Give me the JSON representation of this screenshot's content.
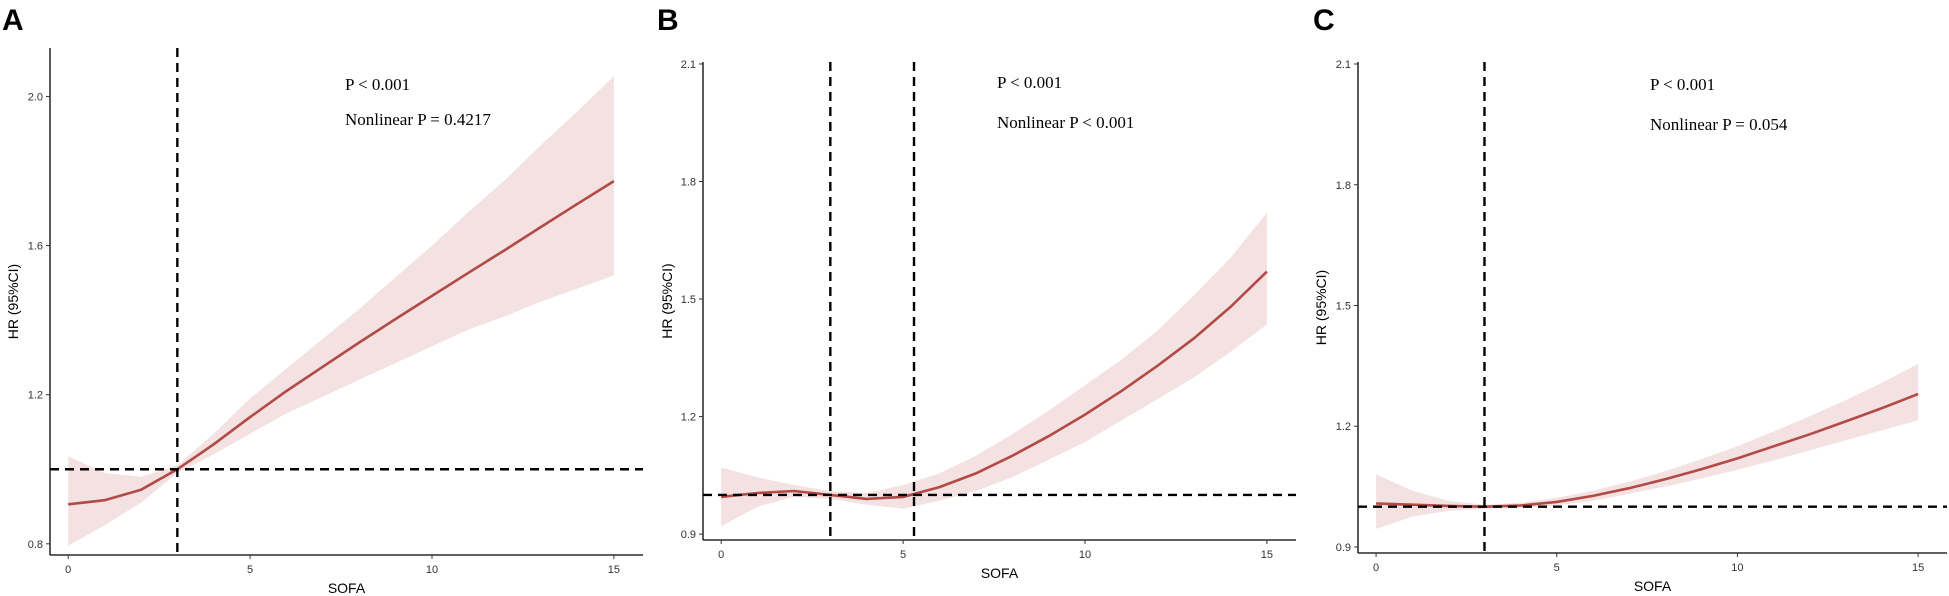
{
  "chart_data": [
    {
      "panel": "A",
      "type": "line",
      "xlabel": "SOFA",
      "ylabel": "HR (95%CI)",
      "xlim": [
        -0.5,
        15.8
      ],
      "ylim": [
        0.77,
        2.13
      ],
      "xticks": [
        0,
        5,
        10,
        15
      ],
      "yticks": [
        0.8,
        1.2,
        1.6,
        2.0
      ],
      "ytick_labels": [
        "0.8",
        "1.2",
        "1.6",
        "2.0"
      ],
      "annotations": [
        "P < 0.001",
        "Nonlinear P = 0.4217"
      ],
      "ref_vlines": [
        3
      ],
      "ref_hline": 1.0,
      "colors": {
        "line": "#b24a46",
        "band": "#f4e1e1"
      },
      "x": [
        0,
        1,
        2,
        3,
        4,
        5,
        6,
        7,
        8,
        9,
        10,
        11,
        12,
        13,
        14,
        15
      ],
      "y": [
        0.906,
        0.917,
        0.945,
        1.0,
        1.067,
        1.14,
        1.21,
        1.275,
        1.34,
        1.403,
        1.465,
        1.527,
        1.588,
        1.65,
        1.712,
        1.773
      ],
      "lower": [
        0.795,
        0.85,
        0.91,
        0.99,
        1.04,
        1.095,
        1.15,
        1.195,
        1.24,
        1.285,
        1.33,
        1.375,
        1.41,
        1.45,
        1.485,
        1.52
      ],
      "upper": [
        1.035,
        0.99,
        0.98,
        1.01,
        1.095,
        1.19,
        1.27,
        1.35,
        1.43,
        1.515,
        1.6,
        1.69,
        1.775,
        1.87,
        1.96,
        2.055
      ]
    },
    {
      "panel": "B",
      "type": "line",
      "xlabel": "SOFA",
      "ylabel": "HR (95%CI)",
      "xlim": [
        -0.5,
        15.8
      ],
      "ylim": [
        0.885,
        2.105
      ],
      "xticks": [
        0,
        5,
        10,
        15
      ],
      "yticks": [
        0.9,
        1.2,
        1.5,
        1.8,
        2.1
      ],
      "ytick_labels": [
        "0.9",
        "1.2",
        "1.5",
        "1.8",
        "2.1"
      ],
      "annotations": [
        "P < 0.001",
        "Nonlinear P < 0.001"
      ],
      "ref_vlines": [
        3,
        5.3
      ],
      "ref_hline": 1.0,
      "colors": {
        "line": "#b24a46",
        "band": "#f4e1e1"
      },
      "x": [
        0,
        1,
        2,
        3,
        4,
        5,
        6,
        7,
        8,
        9,
        10,
        11,
        12,
        13,
        14,
        15
      ],
      "y": [
        0.995,
        1.005,
        1.01,
        1.0,
        0.99,
        0.995,
        1.02,
        1.055,
        1.1,
        1.15,
        1.205,
        1.265,
        1.33,
        1.4,
        1.48,
        1.57
      ],
      "lower": [
        0.92,
        0.97,
        0.995,
        0.99,
        0.975,
        0.965,
        0.985,
        1.01,
        1.045,
        1.09,
        1.135,
        1.19,
        1.245,
        1.3,
        1.365,
        1.435
      ],
      "upper": [
        1.07,
        1.045,
        1.025,
        1.01,
        1.005,
        1.025,
        1.055,
        1.1,
        1.155,
        1.215,
        1.28,
        1.345,
        1.42,
        1.51,
        1.605,
        1.72
      ]
    },
    {
      "panel": "C",
      "type": "line",
      "xlabel": "SOFA",
      "ylabel": "HR (95%CI)",
      "xlim": [
        -0.5,
        15.8
      ],
      "ylim": [
        0.885,
        2.105
      ],
      "xticks": [
        0,
        5,
        10,
        15
      ],
      "yticks": [
        0.9,
        1.2,
        1.5,
        1.8,
        2.1
      ],
      "ytick_labels": [
        "0.9",
        "1.2",
        "1.5",
        "1.8",
        "2.1"
      ],
      "annotations": [
        "P < 0.001",
        "Nonlinear P = 0.054"
      ],
      "ref_vlines": [
        3
      ],
      "ref_hline": 1.0,
      "colors": {
        "line": "#b24a46",
        "band": "#f4e1e1"
      },
      "x": [
        0,
        1,
        2,
        3,
        4,
        5,
        6,
        7,
        8,
        9,
        10,
        11,
        12,
        13,
        14,
        15
      ],
      "y": [
        1.008,
        1.005,
        1.002,
        1.0,
        1.003,
        1.012,
        1.027,
        1.046,
        1.068,
        1.093,
        1.12,
        1.15,
        1.18,
        1.212,
        1.245,
        1.28
      ],
      "lower": [
        0.945,
        0.975,
        0.99,
        0.995,
        0.997,
        1.003,
        1.015,
        1.032,
        1.05,
        1.07,
        1.092,
        1.115,
        1.14,
        1.165,
        1.19,
        1.215
      ],
      "upper": [
        1.08,
        1.04,
        1.015,
        1.005,
        1.01,
        1.022,
        1.04,
        1.062,
        1.088,
        1.118,
        1.15,
        1.187,
        1.225,
        1.265,
        1.308,
        1.355
      ]
    }
  ]
}
